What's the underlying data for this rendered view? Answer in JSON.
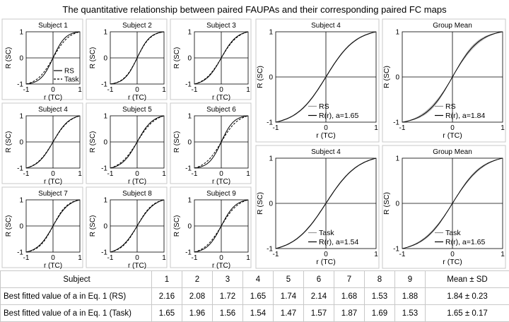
{
  "figure": {
    "title": "The quantitative relationship between paired FAUPAs and their corresponding paired FC maps"
  },
  "chart_data": [
    {
      "type": "line",
      "title": "Subject 1",
      "xlabel": "r (TC)",
      "ylabel": "R (SC)",
      "xlim": [
        -1,
        1
      ],
      "ylim": [
        -1,
        1
      ],
      "xticks": [
        -1,
        0,
        1
      ],
      "yticks": [
        -1,
        0,
        1
      ],
      "legend": "bottom-right",
      "series": [
        {
          "name": "RS",
          "style": "solid",
          "color": "#000000",
          "a": 2.16
        },
        {
          "name": "Task",
          "style": "dashed",
          "color": "#000000",
          "a": 1.65
        }
      ]
    },
    {
      "type": "line",
      "title": "Subject 2",
      "xlabel": "r (TC)",
      "ylabel": "R (SC)",
      "xlim": [
        -1,
        1
      ],
      "ylim": [
        -1,
        1
      ],
      "xticks": [
        -1,
        0,
        1
      ],
      "yticks": [
        -1,
        0,
        1
      ],
      "series": [
        {
          "style": "solid",
          "color": "#000000",
          "a": 2.08
        },
        {
          "style": "dashed",
          "color": "#000000",
          "a": 1.96
        }
      ]
    },
    {
      "type": "line",
      "title": "Subject 3",
      "xlabel": "r (TC)",
      "ylabel": "R (SC)",
      "xlim": [
        -1,
        1
      ],
      "ylim": [
        -1,
        1
      ],
      "xticks": [
        -1,
        0,
        1
      ],
      "yticks": [
        -1,
        0,
        1
      ],
      "series": [
        {
          "style": "solid",
          "color": "#000000",
          "a": 1.72
        },
        {
          "style": "dashed",
          "color": "#000000",
          "a": 1.56
        }
      ]
    },
    {
      "type": "line",
      "title": "Subject 4",
      "xlabel": "r (TC)",
      "ylabel": "R (SC)",
      "xlim": [
        -1,
        1
      ],
      "ylim": [
        -1,
        1
      ],
      "xticks": [
        -1,
        0,
        1
      ],
      "yticks": [
        -1,
        0,
        1
      ],
      "series": [
        {
          "style": "solid",
          "color": "#000000",
          "a": 1.65
        },
        {
          "style": "dashed",
          "color": "#000000",
          "a": 1.54
        }
      ]
    },
    {
      "type": "line",
      "title": "Subject 5",
      "xlabel": "r (TC)",
      "ylabel": "R (SC)",
      "xlim": [
        -1,
        1
      ],
      "ylim": [
        -1,
        1
      ],
      "xticks": [
        -1,
        0,
        1
      ],
      "yticks": [
        -1,
        0,
        1
      ],
      "series": [
        {
          "style": "solid",
          "color": "#000000",
          "a": 1.74
        },
        {
          "style": "dashed",
          "color": "#000000",
          "a": 1.47
        }
      ]
    },
    {
      "type": "line",
      "title": "Subject 6",
      "xlabel": "r (TC)",
      "ylabel": "R (SC)",
      "xlim": [
        -1,
        1
      ],
      "ylim": [
        -1,
        1
      ],
      "xticks": [
        -1,
        0,
        1
      ],
      "yticks": [
        -1,
        0,
        1
      ],
      "series": [
        {
          "style": "solid",
          "color": "#000000",
          "a": 2.14
        },
        {
          "style": "dashed",
          "color": "#000000",
          "a": 1.57
        }
      ]
    },
    {
      "type": "line",
      "title": "Subject 7",
      "xlabel": "r (TC)",
      "ylabel": "R (SC)",
      "xlim": [
        -1,
        1
      ],
      "ylim": [
        -1,
        1
      ],
      "xticks": [
        -1,
        0,
        1
      ],
      "yticks": [
        -1,
        0,
        1
      ],
      "series": [
        {
          "style": "solid",
          "color": "#000000",
          "a": 1.68
        },
        {
          "style": "dashed",
          "color": "#000000",
          "a": 1.87
        }
      ]
    },
    {
      "type": "line",
      "title": "Subject 8",
      "xlabel": "r (TC)",
      "ylabel": "R (SC)",
      "xlim": [
        -1,
        1
      ],
      "ylim": [
        -1,
        1
      ],
      "xticks": [
        -1,
        0,
        1
      ],
      "yticks": [
        -1,
        0,
        1
      ],
      "series": [
        {
          "style": "solid",
          "color": "#000000",
          "a": 1.53
        },
        {
          "style": "dashed",
          "color": "#000000",
          "a": 1.69
        }
      ]
    },
    {
      "type": "line",
      "title": "Subject 9",
      "xlabel": "r (TC)",
      "ylabel": "R (SC)",
      "xlim": [
        -1,
        1
      ],
      "ylim": [
        -1,
        1
      ],
      "xticks": [
        -1,
        0,
        1
      ],
      "yticks": [
        -1,
        0,
        1
      ],
      "series": [
        {
          "style": "solid",
          "color": "#000000",
          "a": 1.88
        },
        {
          "style": "dashed",
          "color": "#000000",
          "a": 1.53
        }
      ]
    },
    {
      "type": "line",
      "title": "Subject 4",
      "xlabel": "r (TC)",
      "ylabel": "R (SC)",
      "xlim": [
        -1,
        1
      ],
      "ylim": [
        -1,
        1
      ],
      "xticks": [
        -1,
        0,
        1
      ],
      "yticks": [
        -1,
        0,
        1
      ],
      "legend": "bottom-right",
      "series": [
        {
          "name": "RS",
          "style": "solid",
          "color": "#999999",
          "a": 1.7
        },
        {
          "name": "R(r), a=1.65",
          "style": "solid",
          "color": "#000000",
          "a": 1.65
        }
      ]
    },
    {
      "type": "line",
      "title": "Group Mean",
      "xlabel": "r (TC)",
      "ylabel": "R (SC)",
      "xlim": [
        -1,
        1
      ],
      "ylim": [
        -1,
        1
      ],
      "xticks": [
        -1,
        0,
        1
      ],
      "yticks": [
        -1,
        0,
        1
      ],
      "legend": "bottom-right",
      "series": [
        {
          "name": "RS",
          "style": "band",
          "color": "#b0b0b0",
          "a": 1.84,
          "band_a": [
            1.61,
            2.07
          ]
        },
        {
          "name": "R(r), a=1.84",
          "style": "solid",
          "color": "#000000",
          "a": 1.84
        }
      ]
    },
    {
      "type": "line",
      "title": "Subject 4",
      "xlabel": "r (TC)",
      "ylabel": "R (SC)",
      "xlim": [
        -1,
        1
      ],
      "ylim": [
        -1,
        1
      ],
      "xticks": [
        -1,
        0,
        1
      ],
      "yticks": [
        -1,
        0,
        1
      ],
      "legend": "bottom-right",
      "series": [
        {
          "name": "Task",
          "style": "solid",
          "color": "#999999",
          "a": 1.58
        },
        {
          "name": "R(r), a=1.54",
          "style": "solid",
          "color": "#000000",
          "a": 1.54
        }
      ]
    },
    {
      "type": "line",
      "title": "Group Mean",
      "xlabel": "r (TC)",
      "ylabel": "R (SC)",
      "xlim": [
        -1,
        1
      ],
      "ylim": [
        -1,
        1
      ],
      "xticks": [
        -1,
        0,
        1
      ],
      "yticks": [
        -1,
        0,
        1
      ],
      "legend": "bottom-right",
      "series": [
        {
          "name": "Task",
          "style": "band",
          "color": "#b0b0b0",
          "a": 1.65,
          "band_a": [
            1.48,
            1.82
          ]
        },
        {
          "name": "R(r), a=1.65",
          "style": "solid",
          "color": "#000000",
          "a": 1.65
        }
      ]
    }
  ],
  "table": {
    "header_label": "Subject",
    "columns": [
      "1",
      "2",
      "3",
      "4",
      "5",
      "6",
      "7",
      "8",
      "9",
      "Mean ± SD"
    ],
    "rows": [
      {
        "label": "Best fitted value of a in Eq. 1 (RS)",
        "values": [
          "2.16",
          "2.08",
          "1.72",
          "1.65",
          "1.74",
          "2.14",
          "1.68",
          "1.53",
          "1.88",
          "1.84 ± 0.23"
        ]
      },
      {
        "label": "Best fitted value of a in Eq. 1 (Task)",
        "values": [
          "1.65",
          "1.96",
          "1.56",
          "1.54",
          "1.47",
          "1.57",
          "1.87",
          "1.69",
          "1.53",
          "1.65 ± 0.17"
        ]
      }
    ]
  }
}
